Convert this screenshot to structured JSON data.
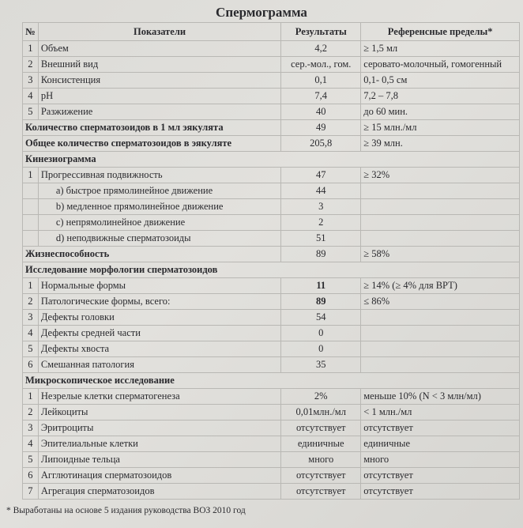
{
  "title": "Спермограмма",
  "headers": {
    "num": "№",
    "name": "Показатели",
    "result": "Результаты",
    "reference": "Референсные пределы*"
  },
  "rows": [
    {
      "type": "item",
      "num": "1",
      "name": "Объем",
      "result": "4,2",
      "ref": "≥ 1,5 мл"
    },
    {
      "type": "item",
      "num": "2",
      "name": "Внешний вид",
      "result": "сер.-мол., гом.",
      "ref": "серовато-молочный, гомогенный"
    },
    {
      "type": "item",
      "num": "3",
      "name": "Консистенция",
      "result": "0,1",
      "ref": "0,1- 0,5 см"
    },
    {
      "type": "item",
      "num": "4",
      "name": "pH",
      "result": "7,4",
      "ref": "7,2 – 7,8"
    },
    {
      "type": "item",
      "num": "5",
      "name": "Разжижение",
      "result": "40",
      "ref": "до 60 мин."
    },
    {
      "type": "bold",
      "name": "Количество сперматозоидов в 1 мл эякулята",
      "result": "49",
      "ref": "≥ 15 млн./мл"
    },
    {
      "type": "bold",
      "name": "Общее количество сперматозоидов в эякуляте",
      "result": "205,8",
      "ref": "≥ 39 млн."
    },
    {
      "type": "section",
      "name": "Кинезиограмма"
    },
    {
      "type": "item",
      "num": "1",
      "name": "Прогрессивная подвижность",
      "result": "47",
      "ref": "≥ 32%"
    },
    {
      "type": "sub",
      "name": "a) быстрое прямолинейное движение",
      "result": "44",
      "ref": ""
    },
    {
      "type": "sub",
      "name": "b) медленное прямолинейное движение",
      "result": "3",
      "ref": ""
    },
    {
      "type": "sub",
      "name": "c) непрямолинейное движение",
      "result": "2",
      "ref": ""
    },
    {
      "type": "sub",
      "name": "d) неподвижные сперматозоиды",
      "result": "51",
      "ref": ""
    },
    {
      "type": "bold",
      "name": "Жизнеспособность",
      "result": "89",
      "ref": "≥ 58%"
    },
    {
      "type": "section",
      "name": "Исследование морфологии сперматозоидов"
    },
    {
      "type": "item",
      "num": "1",
      "name": "Нормальные формы",
      "result": "11",
      "ref": "≥ 14%  (≥ 4% для ВРТ)",
      "boldResult": true
    },
    {
      "type": "item",
      "num": "2",
      "name": "Патологические формы,  всего:",
      "result": "89",
      "ref": "≤ 86%",
      "boldResult": true
    },
    {
      "type": "item",
      "num": "3",
      "name": "Дефекты головки",
      "result": "54",
      "ref": ""
    },
    {
      "type": "item",
      "num": "4",
      "name": "Дефекты средней части",
      "result": "0",
      "ref": ""
    },
    {
      "type": "item",
      "num": "5",
      "name": "Дефекты хвоста",
      "result": "0",
      "ref": ""
    },
    {
      "type": "item",
      "num": "6",
      "name": "Смешанная патология",
      "result": "35",
      "ref": ""
    },
    {
      "type": "section",
      "name": "Микроскопическое исследование"
    },
    {
      "type": "item",
      "num": "1",
      "name": "Незрелые клетки сперматогенеза",
      "result": "2%",
      "ref": "меньше 10% (N < 3 млн/мл)"
    },
    {
      "type": "item",
      "num": "2",
      "name": "Лейкоциты",
      "result": "0,01млн./мл",
      "ref": "< 1 млн./мл"
    },
    {
      "type": "item",
      "num": "3",
      "name": "Эритроциты",
      "result": "отсутствует",
      "ref": "отсутствует"
    },
    {
      "type": "item",
      "num": "4",
      "name": "Эпителиальные клетки",
      "result": "единичные",
      "ref": "единичные"
    },
    {
      "type": "item",
      "num": "5",
      "name": "Липоидные тельца",
      "result": "много",
      "ref": "много"
    },
    {
      "type": "item",
      "num": "6",
      "name": "Агглютинация сперматозоидов",
      "result": "отсутствует",
      "ref": "отсутствует"
    },
    {
      "type": "item",
      "num": "7",
      "name": "Агрегация сперматозоидов",
      "result": "отсутствует",
      "ref": "отсутствует"
    }
  ],
  "footnote": "* Выработаны на основе 5 издания руководства ВОЗ 2010 год"
}
